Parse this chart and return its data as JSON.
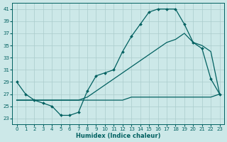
{
  "xlabel": "Humidex (Indice chaleur)",
  "background_color": "#cce8e8",
  "grid_color": "#aacccc",
  "line_color": "#006060",
  "xlim": [
    -0.5,
    23.5
  ],
  "ylim": [
    22,
    42
  ],
  "yticks": [
    23,
    25,
    27,
    29,
    31,
    33,
    35,
    37,
    39,
    41
  ],
  "xticks": [
    0,
    1,
    2,
    3,
    4,
    5,
    6,
    7,
    8,
    9,
    10,
    11,
    12,
    13,
    14,
    15,
    16,
    17,
    18,
    19,
    20,
    21,
    22,
    23
  ],
  "curve1_x": [
    0,
    1,
    2,
    3,
    4,
    5,
    6,
    7,
    8,
    9,
    10,
    11,
    12,
    13,
    14,
    15,
    16,
    17,
    18,
    19,
    20,
    21,
    22,
    23
  ],
  "curve1_y": [
    29,
    27,
    26,
    25.5,
    25,
    23.5,
    23.5,
    24,
    27.5,
    30,
    30.5,
    31,
    34,
    36.5,
    38.5,
    40.5,
    41,
    41,
    41,
    38.5,
    35.5,
    34.5,
    29.5,
    27
  ],
  "curve2_x": [
    0,
    1,
    2,
    3,
    4,
    5,
    6,
    7,
    8,
    9,
    10,
    11,
    12,
    13,
    14,
    15,
    16,
    17,
    18,
    19,
    20,
    21,
    22,
    23
  ],
  "curve2_y": [
    26,
    26,
    26,
    26,
    26,
    26,
    26,
    26,
    26.5,
    27.5,
    28.5,
    29.5,
    30.5,
    31.5,
    32.5,
    33.5,
    34.5,
    35.5,
    36,
    37,
    35.5,
    35,
    34,
    27
  ],
  "curve3_x": [
    0,
    1,
    2,
    3,
    4,
    5,
    6,
    7,
    8,
    9,
    10,
    11,
    12,
    13,
    14,
    15,
    16,
    17,
    18,
    19,
    20,
    21,
    22,
    23
  ],
  "curve3_y": [
    26,
    26,
    26,
    26,
    26,
    26,
    26,
    26,
    26,
    26,
    26,
    26,
    26,
    26.5,
    26.5,
    26.5,
    26.5,
    26.5,
    26.5,
    26.5,
    26.5,
    26.5,
    26.5,
    27
  ]
}
